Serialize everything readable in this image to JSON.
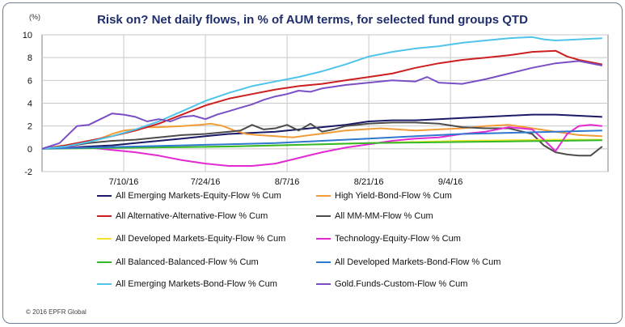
{
  "title": "Risk on? Net daily flows, in % of AUM terms, for selected fund groups QTD",
  "unit_label": "(%)",
  "copyright": "© 2016 EPFR Global",
  "chart_data": {
    "type": "line",
    "title": "Risk on? Net daily flows, in % of AUM terms, for selected fund groups QTD",
    "ylabel": "(%)",
    "xlabel": "",
    "ylim": [
      -2,
      10
    ],
    "yticks": [
      -2,
      0,
      2,
      4,
      6,
      8,
      10
    ],
    "xlim": [
      0,
      97
    ],
    "x_ticks": [
      {
        "x": 14,
        "label": "7/10/16"
      },
      {
        "x": 28,
        "label": "7/24/16"
      },
      {
        "x": 42,
        "label": "8/7/16"
      },
      {
        "x": 56,
        "label": "8/21/16"
      },
      {
        "x": 70,
        "label": "9/4/16"
      }
    ],
    "x_unit": "days since 6/26/16",
    "grid": true,
    "series": [
      {
        "name": "All Emerging Markets-Equity-Flow % Cum",
        "color": "#1a1a66",
        "points": [
          [
            0,
            0
          ],
          [
            4,
            0.1
          ],
          [
            8,
            0.2
          ],
          [
            12,
            0.3
          ],
          [
            16,
            0.5
          ],
          [
            20,
            0.7
          ],
          [
            24,
            0.9
          ],
          [
            28,
            1.1
          ],
          [
            32,
            1.3
          ],
          [
            36,
            1.4
          ],
          [
            40,
            1.5
          ],
          [
            44,
            1.7
          ],
          [
            48,
            1.9
          ],
          [
            52,
            2.1
          ],
          [
            56,
            2.4
          ],
          [
            60,
            2.5
          ],
          [
            64,
            2.5
          ],
          [
            68,
            2.6
          ],
          [
            72,
            2.7
          ],
          [
            76,
            2.8
          ],
          [
            80,
            2.9
          ],
          [
            84,
            3.0
          ],
          [
            88,
            3.0
          ],
          [
            92,
            2.9
          ],
          [
            96,
            2.8
          ]
        ]
      },
      {
        "name": "High Yield-Bond-Flow % Cum",
        "color": "#f29c38",
        "points": [
          [
            0,
            0
          ],
          [
            4,
            0.3
          ],
          [
            8,
            0.6
          ],
          [
            10,
            0.9
          ],
          [
            12,
            1.3
          ],
          [
            14,
            1.6
          ],
          [
            16,
            1.7
          ],
          [
            18,
            1.9
          ],
          [
            20,
            1.9
          ],
          [
            24,
            2.0
          ],
          [
            27,
            2.1
          ],
          [
            29,
            2.2
          ],
          [
            31,
            2.0
          ],
          [
            33,
            1.6
          ],
          [
            35,
            1.3
          ],
          [
            37,
            1.2
          ],
          [
            40,
            1.1
          ],
          [
            43,
            1.0
          ],
          [
            46,
            1.2
          ],
          [
            49,
            1.4
          ],
          [
            52,
            1.6
          ],
          [
            55,
            1.7
          ],
          [
            58,
            1.8
          ],
          [
            61,
            1.7
          ],
          [
            64,
            1.6
          ],
          [
            68,
            1.7
          ],
          [
            72,
            1.8
          ],
          [
            76,
            2.0
          ],
          [
            80,
            2.1
          ],
          [
            84,
            1.8
          ],
          [
            88,
            1.5
          ],
          [
            92,
            1.2
          ],
          [
            96,
            1.1
          ]
        ]
      },
      {
        "name": "All Alternative-Alternative-Flow % Cum",
        "color": "#cc1f1f",
        "points": [
          [
            0,
            0
          ],
          [
            4,
            0.3
          ],
          [
            8,
            0.7
          ],
          [
            12,
            1.1
          ],
          [
            16,
            1.6
          ],
          [
            20,
            2.2
          ],
          [
            24,
            3.0
          ],
          [
            28,
            3.8
          ],
          [
            32,
            4.4
          ],
          [
            36,
            4.8
          ],
          [
            40,
            5.2
          ],
          [
            44,
            5.5
          ],
          [
            48,
            5.7
          ],
          [
            52,
            6.0
          ],
          [
            56,
            6.3
          ],
          [
            60,
            6.6
          ],
          [
            64,
            7.1
          ],
          [
            68,
            7.5
          ],
          [
            72,
            7.8
          ],
          [
            76,
            8.0
          ],
          [
            80,
            8.2
          ],
          [
            84,
            8.5
          ],
          [
            88,
            8.6
          ],
          [
            90,
            8.1
          ],
          [
            92,
            7.8
          ],
          [
            96,
            7.4
          ]
        ]
      },
      {
        "name": "All MM-MM-Flow % Cum",
        "color": "#4d4d4d",
        "points": [
          [
            0,
            0
          ],
          [
            4,
            0.2
          ],
          [
            8,
            0.5
          ],
          [
            12,
            0.7
          ],
          [
            16,
            0.8
          ],
          [
            20,
            1.0
          ],
          [
            24,
            1.2
          ],
          [
            28,
            1.3
          ],
          [
            32,
            1.5
          ],
          [
            34,
            1.6
          ],
          [
            36,
            2.1
          ],
          [
            38,
            1.7
          ],
          [
            40,
            1.8
          ],
          [
            42,
            2.1
          ],
          [
            44,
            1.6
          ],
          [
            46,
            2.2
          ],
          [
            48,
            1.5
          ],
          [
            50,
            1.7
          ],
          [
            52,
            2.0
          ],
          [
            56,
            2.2
          ],
          [
            60,
            2.3
          ],
          [
            64,
            2.3
          ],
          [
            68,
            2.2
          ],
          [
            72,
            1.9
          ],
          [
            76,
            1.8
          ],
          [
            80,
            1.8
          ],
          [
            84,
            1.3
          ],
          [
            86,
            0.3
          ],
          [
            88,
            -0.3
          ],
          [
            90,
            -0.5
          ],
          [
            92,
            -0.6
          ],
          [
            94,
            -0.6
          ],
          [
            96,
            0.2
          ]
        ]
      },
      {
        "name": "All Developed Markets-Equity-Flow % Cum",
        "color": "#f2e22a",
        "points": [
          [
            0,
            0
          ],
          [
            8,
            0.05
          ],
          [
            16,
            0.1
          ],
          [
            24,
            0.15
          ],
          [
            32,
            0.2
          ],
          [
            40,
            0.3
          ],
          [
            48,
            0.4
          ],
          [
            56,
            0.5
          ],
          [
            64,
            0.6
          ],
          [
            72,
            0.7
          ],
          [
            80,
            0.75
          ],
          [
            88,
            0.8
          ],
          [
            96,
            0.8
          ]
        ]
      },
      {
        "name": "Technology-Equity-Flow % Cum",
        "color": "#e22ad0",
        "points": [
          [
            0,
            0
          ],
          [
            4,
            0.1
          ],
          [
            8,
            0.1
          ],
          [
            12,
            -0.1
          ],
          [
            16,
            -0.3
          ],
          [
            20,
            -0.6
          ],
          [
            24,
            -1.0
          ],
          [
            28,
            -1.3
          ],
          [
            32,
            -1.5
          ],
          [
            36,
            -1.5
          ],
          [
            40,
            -1.3
          ],
          [
            44,
            -0.8
          ],
          [
            48,
            -0.3
          ],
          [
            52,
            0.1
          ],
          [
            56,
            0.4
          ],
          [
            60,
            0.7
          ],
          [
            64,
            0.9
          ],
          [
            68,
            1.0
          ],
          [
            72,
            1.3
          ],
          [
            76,
            1.5
          ],
          [
            80,
            1.9
          ],
          [
            84,
            1.7
          ],
          [
            86,
            0.8
          ],
          [
            88,
            -0.2
          ],
          [
            90,
            1.3
          ],
          [
            92,
            2.0
          ],
          [
            94,
            2.1
          ],
          [
            96,
            2.0
          ]
        ]
      },
      {
        "name": "All Balanced-Balanced-Flow % Cum",
        "color": "#35b82a",
        "points": [
          [
            0,
            0
          ],
          [
            8,
            0.05
          ],
          [
            16,
            0.1
          ],
          [
            24,
            0.15
          ],
          [
            32,
            0.2
          ],
          [
            40,
            0.3
          ],
          [
            48,
            0.4
          ],
          [
            56,
            0.5
          ],
          [
            64,
            0.55
          ],
          [
            72,
            0.6
          ],
          [
            80,
            0.65
          ],
          [
            88,
            0.7
          ],
          [
            96,
            0.75
          ]
        ]
      },
      {
        "name": "All Developed Markets-Bond-Flow % Cum",
        "color": "#2f78d0",
        "points": [
          [
            0,
            0
          ],
          [
            8,
            0.1
          ],
          [
            16,
            0.2
          ],
          [
            24,
            0.3
          ],
          [
            32,
            0.4
          ],
          [
            40,
            0.5
          ],
          [
            48,
            0.7
          ],
          [
            56,
            0.9
          ],
          [
            64,
            1.1
          ],
          [
            72,
            1.3
          ],
          [
            80,
            1.4
          ],
          [
            88,
            1.5
          ],
          [
            96,
            1.6
          ]
        ]
      },
      {
        "name": "All Emerging Markets-Bond-Flow % Cum",
        "color": "#4fc4ea",
        "points": [
          [
            0,
            0
          ],
          [
            4,
            0.2
          ],
          [
            8,
            0.6
          ],
          [
            12,
            1.1
          ],
          [
            16,
            1.7
          ],
          [
            20,
            2.4
          ],
          [
            24,
            3.3
          ],
          [
            28,
            4.2
          ],
          [
            32,
            4.9
          ],
          [
            36,
            5.5
          ],
          [
            40,
            5.9
          ],
          [
            44,
            6.3
          ],
          [
            48,
            6.8
          ],
          [
            52,
            7.4
          ],
          [
            56,
            8.1
          ],
          [
            60,
            8.5
          ],
          [
            64,
            8.8
          ],
          [
            68,
            9.0
          ],
          [
            72,
            9.3
          ],
          [
            76,
            9.5
          ],
          [
            80,
            9.7
          ],
          [
            84,
            9.8
          ],
          [
            86,
            9.6
          ],
          [
            88,
            9.5
          ],
          [
            92,
            9.6
          ],
          [
            96,
            9.7
          ]
        ]
      },
      {
        "name": "Gold.Funds-Custom-Flow % Cum",
        "color": "#7a4ec4",
        "points": [
          [
            0,
            0
          ],
          [
            3,
            0.5
          ],
          [
            6,
            2.0
          ],
          [
            8,
            2.1
          ],
          [
            10,
            2.6
          ],
          [
            12,
            3.1
          ],
          [
            14,
            3.0
          ],
          [
            16,
            2.8
          ],
          [
            18,
            2.4
          ],
          [
            20,
            2.6
          ],
          [
            22,
            2.4
          ],
          [
            24,
            2.8
          ],
          [
            26,
            2.9
          ],
          [
            28,
            2.6
          ],
          [
            30,
            3.0
          ],
          [
            32,
            3.3
          ],
          [
            34,
            3.6
          ],
          [
            36,
            3.9
          ],
          [
            38,
            4.3
          ],
          [
            40,
            4.6
          ],
          [
            42,
            4.8
          ],
          [
            44,
            5.1
          ],
          [
            46,
            5.0
          ],
          [
            48,
            5.3
          ],
          [
            52,
            5.6
          ],
          [
            56,
            5.8
          ],
          [
            60,
            6.0
          ],
          [
            64,
            5.9
          ],
          [
            66,
            6.3
          ],
          [
            68,
            5.8
          ],
          [
            72,
            5.7
          ],
          [
            76,
            6.1
          ],
          [
            80,
            6.6
          ],
          [
            84,
            7.1
          ],
          [
            88,
            7.5
          ],
          [
            92,
            7.7
          ],
          [
            96,
            7.3
          ]
        ]
      }
    ]
  }
}
